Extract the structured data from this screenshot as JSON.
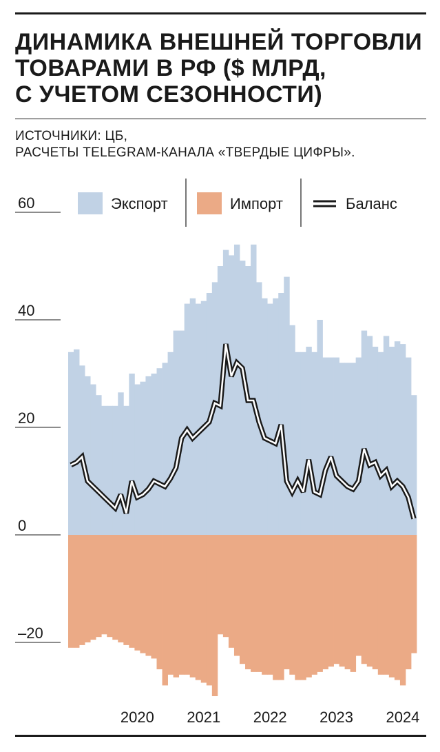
{
  "title_lines": [
    "ДИНАМИКА ВНЕШНЕЙ ТОРГОВЛИ",
    "ТОВАРАМИ В РФ ($ МЛРД,",
    "С УЧЕТОМ СЕЗОННОСТИ)"
  ],
  "source_lines": [
    "ИСТОЧНИКИ: ЦБ,",
    "РАСЧЕТЫ TELEGRAM-КАНАЛА «ТВЕРДЫЕ ЦИФРЫ»."
  ],
  "chart_data": {
    "type": "area",
    "ylim": [
      -29,
      62
    ],
    "yticks": [
      {
        "value": 60,
        "label": "60"
      },
      {
        "value": 40,
        "label": "40"
      },
      {
        "value": 20,
        "label": "20"
      },
      {
        "value": 0,
        "label": "0"
      },
      {
        "value": -20,
        "label": "–20"
      }
    ],
    "x_start": "2019-07",
    "x_end": "2024-08",
    "x_labels": [
      {
        "x": "2020-07",
        "label": "2020"
      },
      {
        "x": "2021-07",
        "label": "2021"
      },
      {
        "x": "2022-07",
        "label": "2022"
      },
      {
        "x": "2023-07",
        "label": "2023"
      },
      {
        "x": "2024-07",
        "label": "2024"
      }
    ],
    "colors": {
      "export": "#c1d2e5",
      "import": "#ebaa86",
      "balance": "#1a1a1a"
    },
    "series": [
      {
        "name": "Экспорт",
        "key": "export",
        "style": "bars",
        "values": [
          34,
          34.5,
          31.5,
          29.5,
          28,
          26,
          24,
          24,
          24,
          26.5,
          24,
          30,
          28,
          28.5,
          29.5,
          30,
          31,
          32,
          34,
          38,
          38,
          43,
          44,
          43,
          43.5,
          45,
          47,
          50,
          53,
          52,
          54,
          51,
          50,
          54,
          47,
          44,
          43,
          44,
          45,
          48,
          39,
          34,
          34,
          35,
          34,
          40,
          33,
          33,
          33,
          32,
          32,
          32,
          33,
          38,
          37,
          35,
          34,
          37,
          35,
          36,
          35.5,
          33,
          26
        ]
      },
      {
        "name": "Импорт",
        "key": "import",
        "style": "bars",
        "values": [
          -21,
          -21,
          -20.5,
          -20,
          -19.5,
          -19,
          -18.5,
          -19,
          -19.5,
          -20,
          -20.5,
          -21,
          -21.5,
          -22,
          -22.5,
          -23,
          -25,
          -28,
          -26,
          -26.5,
          -26,
          -26,
          -26.5,
          -27,
          -27.5,
          -28,
          -30,
          -18.5,
          -19,
          -21,
          -22.5,
          -24,
          -25,
          -25.5,
          -25.5,
          -26,
          -26,
          -27,
          -27,
          -25,
          -26,
          -27,
          -27,
          -26.5,
          -26,
          -25.5,
          -25,
          -24.5,
          -24,
          -24.5,
          -25,
          -25.5,
          -22.5,
          -24,
          -24.5,
          -25,
          -26,
          -26,
          -26.5,
          -27,
          -28,
          -25,
          -22
        ]
      },
      {
        "name": "Баланс",
        "key": "balance",
        "style": "line",
        "values": [
          13,
          13.5,
          14.5,
          10,
          9,
          8,
          7,
          6,
          5,
          7.5,
          4,
          10,
          7,
          7.5,
          8.5,
          10,
          9.5,
          9,
          10.5,
          12.5,
          18,
          19.5,
          18,
          19,
          20,
          21,
          24.5,
          24,
          35.5,
          29.5,
          32,
          31,
          25,
          25,
          21,
          18,
          17.5,
          17,
          20.5,
          10,
          8,
          10,
          8,
          14,
          8,
          7.5,
          12,
          14.5,
          11,
          10,
          9,
          8.5,
          10,
          16,
          13,
          13.5,
          11,
          12,
          9,
          10,
          9,
          7,
          3
        ]
      }
    ]
  }
}
